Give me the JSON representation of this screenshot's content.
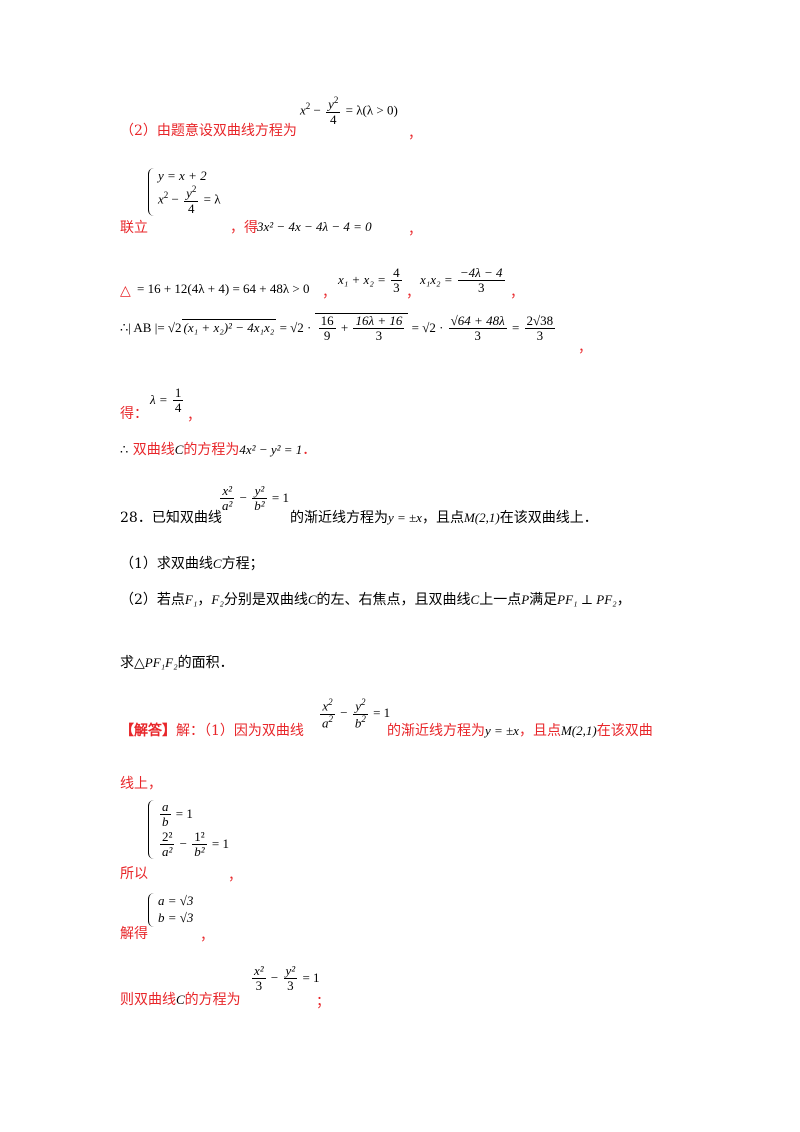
{
  "lines": {
    "l1_label": "（2）由题意设双曲线方程为",
    "l1_eq_x": "x",
    "l1_eq_lhs_y": "y",
    "l1_eq_den": "4",
    "l1_eq_rhs": "= λ(λ > 0)",
    "l1_tail": "，",
    "l2_sys1": "y = x + 2",
    "l2_sys2a": "x",
    "l2_sys2_rhs": "= λ",
    "l2_label": "联立",
    "l2_mid": "，得",
    "l2_eq": "3x² − 4x − 4λ − 4 = 0",
    "l2_tail": "，",
    "l3_delta": "△",
    "l3_eq": "= 16 + 12(4λ + 4) = 64 + 48λ > 0",
    "l3_c1": "，",
    "l3_sum": "x₁ + x₂ =",
    "l3_sum_num": "4",
    "l3_sum_den": "3",
    "l3_c2": "，",
    "l3_prod": "x₁x₂ =",
    "l3_prod_num": "−4λ − 4",
    "l3_prod_den": "3",
    "l3_c3": "，",
    "l4_eq_a": "∴| AB |= √2",
    "l4_eq_rad": "(x₁ + x₂)² − 4x₁x₂",
    "l4_eq_b": "= √2 ·",
    "l4_f1_num": "16",
    "l4_f1_den": "9",
    "l4_plus": "+",
    "l4_f2_num": "16λ + 16",
    "l4_f2_den": "3",
    "l4_eq_c": "= √2 ·",
    "l4_f3_num": "√64 + 48λ",
    "l4_f3_den": "3",
    "l4_eq_d": "=",
    "l4_f4_num": "2√38",
    "l4_f4_den": "3",
    "l4_tail": "，",
    "l5_label": "得：",
    "l5_eq": "λ =",
    "l5_num": "1",
    "l5_den": "4",
    "l5_tail": "，",
    "l6_therefore": "∴",
    "l6_label": "双曲线",
    "l6_C": "C",
    "l6_mid": "的方程为",
    "l6_eq": "4x² − y² = 1",
    "l6_tail": "．",
    "q28_a": "28．已知双曲线",
    "q28_xnum": "x²",
    "q28_xden": "a²",
    "q28_ynum": "y²",
    "q28_yden": "b²",
    "q28_eq1": "= 1",
    "q28_b": "的渐近线方程为",
    "q28_asym": "y = ±x",
    "q28_c": "，且点",
    "q28_M": "M(2,1)",
    "q28_d": "在该双曲线上．",
    "q28_p1a": "（1）求双曲线",
    "q28_p1C": "C",
    "q28_p1b": "方程；",
    "q28_p2a": "（2）若点",
    "q28_F1": "F₁",
    "q28_p2b": "，",
    "q28_F2": "F₂",
    "q28_p2c": "分别是双曲线",
    "q28_p2C": "C",
    "q28_p2d": "的左、右焦点，且双曲线",
    "q28_p2C2": "C",
    "q28_p2e": "上一点",
    "q28_P": "P",
    "q28_p2f": "满足",
    "q28_perp": "PF₁ ⊥ PF₂",
    "q28_p2g": "，",
    "q28_p2h": "求△",
    "q28_tri": "PF₁F₂",
    "q28_p2i": "的面积．",
    "ans_tag": "【解答】",
    "ans_a": "解：（1）因为双曲线",
    "ans_b": "的渐近线方程为",
    "ans_asym": "y = ±x",
    "ans_c": "，且点",
    "ans_M": "M(2,1)",
    "ans_d": "在该双曲",
    "ans_e": "线上，",
    "s1_row1_num": "a",
    "s1_row1_den": "b",
    "s1_row1_rhs": "= 1",
    "s1_row2a_num": "2²",
    "s1_row2a_den": "a²",
    "s1_row2b_num": "1²",
    "s1_row2b_den": "b²",
    "s1_row2_rhs": "= 1",
    "s1_label": "所以",
    "s1_tail": "，",
    "s2_row1": "a = √3",
    "s2_row2": "b = √3",
    "s2_label": "解得",
    "s2_tail": "，",
    "s3_label": "则双曲线",
    "s3_C": "C",
    "s3_mid": "的方程为",
    "s3_xnum": "x²",
    "s3_xden": "3",
    "s3_ynum": "y²",
    "s3_yden": "3",
    "s3_eq": "= 1",
    "s3_tail": "；"
  }
}
